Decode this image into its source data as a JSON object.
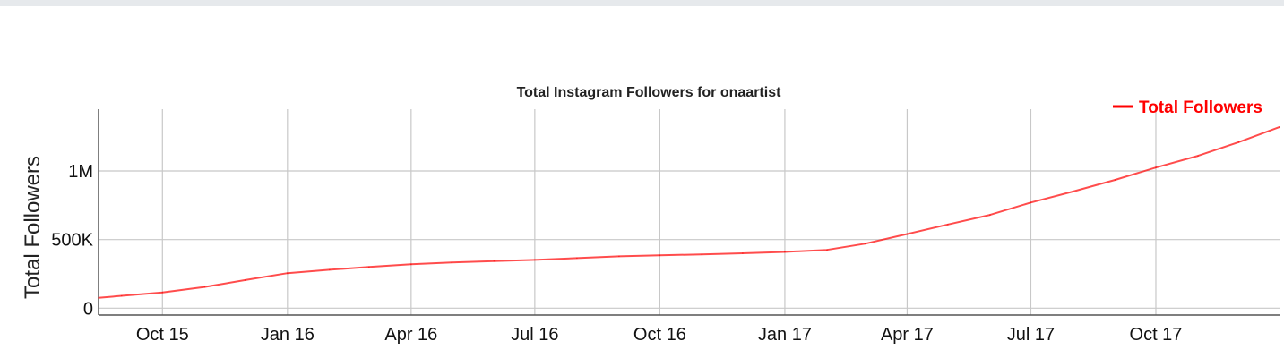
{
  "chart_data": {
    "type": "line",
    "title": "Total Instagram Followers for onaartist",
    "xlabel": "",
    "ylabel": "Total Followers",
    "x_ticks": [
      "Oct 15",
      "Jan 16",
      "Apr 16",
      "Jul 16",
      "Oct 16",
      "Jan 17",
      "Apr 17",
      "Jul 17",
      "Oct 17"
    ],
    "y_ticks": [
      "0",
      "500K",
      "1M"
    ],
    "ylim": [
      -50000,
      1450000
    ],
    "xlim": [
      "2015-08-15",
      "2017-12-31"
    ],
    "grid": true,
    "legend_position": "top-right",
    "series": [
      {
        "name": "Total Followers",
        "color": "#ff0000",
        "points": [
          {
            "x": "2015-08-15",
            "y": 75000
          },
          {
            "x": "2015-09-01",
            "y": 90000
          },
          {
            "x": "2015-10-01",
            "y": 115000
          },
          {
            "x": "2015-11-01",
            "y": 155000
          },
          {
            "x": "2015-12-01",
            "y": 205000
          },
          {
            "x": "2016-01-01",
            "y": 255000
          },
          {
            "x": "2016-02-01",
            "y": 280000
          },
          {
            "x": "2016-03-01",
            "y": 300000
          },
          {
            "x": "2016-04-01",
            "y": 320000
          },
          {
            "x": "2016-05-01",
            "y": 333000
          },
          {
            "x": "2016-06-01",
            "y": 343000
          },
          {
            "x": "2016-07-01",
            "y": 352000
          },
          {
            "x": "2016-08-01",
            "y": 365000
          },
          {
            "x": "2016-09-01",
            "y": 378000
          },
          {
            "x": "2016-10-01",
            "y": 385000
          },
          {
            "x": "2016-11-01",
            "y": 392000
          },
          {
            "x": "2016-12-01",
            "y": 400000
          },
          {
            "x": "2017-01-01",
            "y": 410000
          },
          {
            "x": "2017-02-01",
            "y": 425000
          },
          {
            "x": "2017-03-01",
            "y": 470000
          },
          {
            "x": "2017-04-01",
            "y": 540000
          },
          {
            "x": "2017-05-01",
            "y": 610000
          },
          {
            "x": "2017-06-01",
            "y": 680000
          },
          {
            "x": "2017-07-01",
            "y": 770000
          },
          {
            "x": "2017-08-01",
            "y": 850000
          },
          {
            "x": "2017-09-01",
            "y": 935000
          },
          {
            "x": "2017-10-01",
            "y": 1025000
          },
          {
            "x": "2017-11-01",
            "y": 1110000
          },
          {
            "x": "2017-12-01",
            "y": 1210000
          },
          {
            "x": "2017-12-31",
            "y": 1320000
          }
        ]
      }
    ]
  }
}
